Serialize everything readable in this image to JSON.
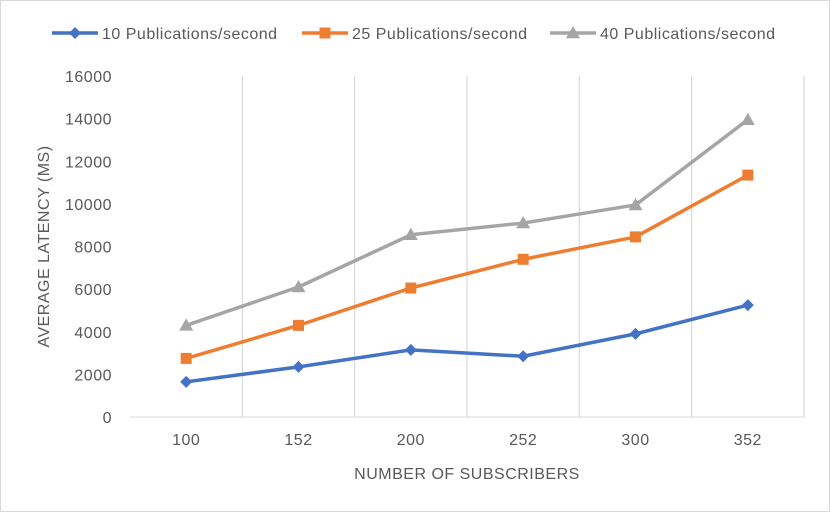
{
  "chart_data": {
    "type": "line",
    "title": "",
    "xlabel": "NUMBER OF SUBSCRIBERS",
    "ylabel": "AVERAGE LATENCY (MS)",
    "categories": [
      "100",
      "152",
      "200",
      "252",
      "300",
      "352"
    ],
    "ylim": [
      0,
      16000
    ],
    "yticks": [
      0,
      2000,
      4000,
      6000,
      8000,
      10000,
      12000,
      14000,
      16000
    ],
    "grid": "vertical",
    "legend_position": "top",
    "series": [
      {
        "name": "10 Publications/second",
        "values": [
          1650,
          2350,
          3150,
          2850,
          3900,
          5250
        ],
        "color": "#4472c4",
        "marker": "diamond"
      },
      {
        "name": "25 Publications/second",
        "values": [
          2750,
          4300,
          6050,
          7400,
          8450,
          11350
        ],
        "color": "#ed7d31",
        "marker": "square"
      },
      {
        "name": "40 Publications/second",
        "values": [
          4300,
          6100,
          8550,
          9100,
          9950,
          13950
        ],
        "color": "#a5a5a5",
        "marker": "triangle"
      }
    ]
  }
}
